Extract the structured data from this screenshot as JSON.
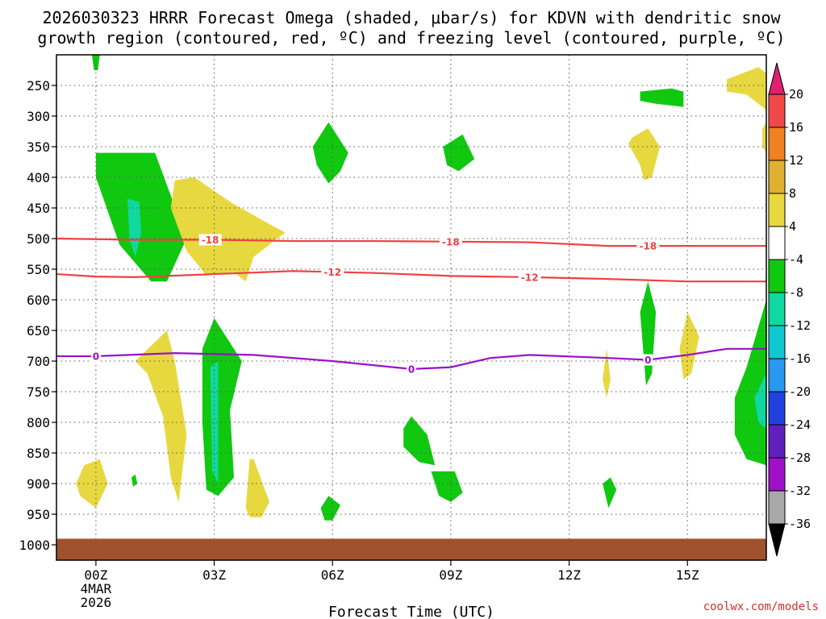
{
  "chart_data": {
    "type": "time-height contour",
    "title_line1": "2026030323 HRRR Forecast Omega (shaded, μbar/s) for KDVN with dendritic snow",
    "title_line2": "growth region (contoured, red, ºC) and freezing level (contoured, purple, ºC)",
    "xlabel": "Forecast Time (UTC)",
    "x_ticks": [
      {
        "label": "00Z",
        "hour": 0
      },
      {
        "label": "03Z",
        "hour": 3
      },
      {
        "label": "06Z",
        "hour": 6
      },
      {
        "label": "09Z",
        "hour": 9
      },
      {
        "label": "12Z",
        "hour": 12
      },
      {
        "label": "15Z",
        "hour": 15
      }
    ],
    "x_sub_label": [
      "4MAR",
      "2026"
    ],
    "xlim_hours": [
      -1,
      17
    ],
    "y_ticks": [
      250,
      300,
      350,
      400,
      450,
      500,
      550,
      600,
      650,
      700,
      750,
      800,
      850,
      900,
      950,
      1000
    ],
    "ylim_hpa": [
      200,
      1025
    ],
    "ground_pressure": 990,
    "ground_color": "#a0522d",
    "colorbar": {
      "labels": [
        "20",
        "16",
        "12",
        "8",
        "4",
        "-4",
        "-8",
        "-12",
        "-16",
        "-20",
        "-24",
        "-28",
        "-32",
        "-36"
      ],
      "colors": [
        "#e02070",
        "#f04848",
        "#f08020",
        "#e0b030",
        "#e8d840",
        "#ffffff",
        "#10c810",
        "#10d8a0",
        "#10c8d0",
        "#2898f0",
        "#2040e0",
        "#6020c0",
        "#a010c8",
        "#a8a8a8",
        "#000000"
      ]
    },
    "shading": [
      {
        "name": "omega-green-2",
        "color": "#10c810",
        "value_range": "-8 to -4",
        "points": [
          [
            -0.1,
            200
          ],
          [
            -0.05,
            225
          ],
          [
            0.05,
            225
          ],
          [
            0.1,
            200
          ]
        ]
      },
      {
        "name": "omega-green-2",
        "color": "#10c810",
        "value_range": "-8 to -4",
        "points": [
          [
            0,
            360
          ],
          [
            1.5,
            360
          ],
          [
            2.3,
            500
          ],
          [
            1.8,
            570
          ],
          [
            1.4,
            570
          ],
          [
            0.6,
            510
          ],
          [
            0,
            400
          ]
        ]
      },
      {
        "name": "omega-teal-2",
        "color": "#10d8a0",
        "value_range": "-12 to -8",
        "points": [
          [
            0.8,
            435
          ],
          [
            1.1,
            440
          ],
          [
            1.15,
            490
          ],
          [
            1.0,
            530
          ],
          [
            0.85,
            500
          ]
        ]
      },
      {
        "name": "omega-yellow-2",
        "color": "#e8d840",
        "value_range": "4 to 8",
        "points": [
          [
            2.0,
            405
          ],
          [
            2.5,
            400
          ],
          [
            3.4,
            440
          ],
          [
            4.5,
            480
          ],
          [
            4.8,
            490
          ],
          [
            4.0,
            530
          ],
          [
            3.8,
            570
          ],
          [
            3.5,
            555
          ],
          [
            2.8,
            560
          ],
          [
            2.3,
            520
          ],
          [
            1.9,
            450
          ]
        ]
      },
      {
        "name": "omega-green-3",
        "color": "#10c810",
        "value_range": "-8 to -4",
        "points": [
          [
            5.5,
            350
          ],
          [
            5.9,
            310
          ],
          [
            6.4,
            360
          ],
          [
            6.2,
            390
          ],
          [
            5.9,
            410
          ],
          [
            5.6,
            380
          ]
        ]
      },
      {
        "name": "omega-green-4",
        "color": "#10c810",
        "value_range": "-8 to -4",
        "points": [
          [
            8.8,
            350
          ],
          [
            9.3,
            330
          ],
          [
            9.6,
            370
          ],
          [
            9.2,
            390
          ],
          [
            8.9,
            380
          ]
        ]
      },
      {
        "name": "omega-green-5",
        "color": "#10c810",
        "value_range": "-8 to -4",
        "points": [
          [
            13.8,
            260
          ],
          [
            14.6,
            255
          ],
          [
            14.9,
            260
          ],
          [
            14.9,
            285
          ],
          [
            14.2,
            280
          ],
          [
            13.8,
            275
          ]
        ]
      },
      {
        "name": "omega-yellow-5",
        "color": "#e8d840",
        "value_range": "4 to 8",
        "points": [
          [
            13.6,
            335
          ],
          [
            14.0,
            320
          ],
          [
            14.3,
            350
          ],
          [
            14.1,
            400
          ],
          [
            13.9,
            405
          ],
          [
            13.8,
            380
          ],
          [
            13.5,
            345
          ]
        ]
      },
      {
        "name": "omega-yellow-6",
        "color": "#e8d840",
        "value_range": "4 to 8",
        "points": [
          [
            16.0,
            240
          ],
          [
            16.8,
            220
          ],
          [
            17.0,
            230
          ],
          [
            17.0,
            290
          ],
          [
            16.5,
            265
          ],
          [
            16.0,
            260
          ]
        ]
      },
      {
        "name": "omega-yellow-7",
        "color": "#e8d840",
        "value_range": "4 to 8",
        "points": [
          [
            16.9,
            320
          ],
          [
            17.0,
            310
          ],
          [
            17.0,
            360
          ],
          [
            16.9,
            350
          ]
        ]
      },
      {
        "name": "omega-yellow-8",
        "color": "#e8d840",
        "value_range": "4 to 8",
        "points": [
          [
            1.0,
            700
          ],
          [
            1.8,
            650
          ],
          [
            2.0,
            700
          ],
          [
            2.3,
            820
          ],
          [
            2.1,
            930
          ],
          [
            1.9,
            890
          ],
          [
            1.7,
            790
          ],
          [
            1.3,
            720
          ]
        ]
      },
      {
        "name": "omega-green-6",
        "color": "#10c810",
        "value_range": "-8 to -4",
        "points": [
          [
            2.7,
            680
          ],
          [
            3.0,
            630
          ],
          [
            3.7,
            700
          ],
          [
            3.4,
            780
          ],
          [
            3.5,
            890
          ],
          [
            3.1,
            920
          ],
          [
            2.8,
            910
          ],
          [
            2.7,
            800
          ]
        ]
      },
      {
        "name": "omega-teal-6",
        "color": "#10d8a0",
        "value_range": "-12 to -8",
        "points": [
          [
            2.9,
            710
          ],
          [
            3.1,
            700
          ],
          [
            3.1,
            900
          ],
          [
            2.95,
            880
          ]
        ]
      },
      {
        "name": "omega-yellow-9",
        "color": "#e8d840",
        "value_range": "4 to 8",
        "points": [
          [
            3.8,
            940
          ],
          [
            3.9,
            860
          ],
          [
            4.0,
            860
          ],
          [
            4.4,
            930
          ],
          [
            4.2,
            955
          ],
          [
            3.9,
            955
          ]
        ]
      },
      {
        "name": "omega-yellow-10",
        "color": "#e8d840",
        "value_range": "4 to 8",
        "points": [
          [
            -0.5,
            900
          ],
          [
            -0.3,
            870
          ],
          [
            0.1,
            860
          ],
          [
            0.3,
            900
          ],
          [
            0.0,
            940
          ],
          [
            -0.4,
            920
          ]
        ]
      },
      {
        "name": "omega-green-7",
        "color": "#10c810",
        "value_range": "-8 to -4",
        "points": [
          [
            0.9,
            890
          ],
          [
            1.0,
            885
          ],
          [
            1.05,
            900
          ],
          [
            0.95,
            905
          ]
        ]
      },
      {
        "name": "omega-green-8",
        "color": "#10c810",
        "value_range": "-8 to -4",
        "points": [
          [
            5.7,
            940
          ],
          [
            5.9,
            920
          ],
          [
            6.2,
            935
          ],
          [
            6.0,
            960
          ],
          [
            5.8,
            960
          ]
        ]
      },
      {
        "name": "omega-green-9",
        "color": "#10c810",
        "value_range": "-8 to -4",
        "points": [
          [
            7.8,
            810
          ],
          [
            8.0,
            790
          ],
          [
            8.4,
            820
          ],
          [
            8.6,
            870
          ],
          [
            8.2,
            865
          ],
          [
            7.8,
            840
          ]
        ]
      },
      {
        "name": "omega-green-10",
        "color": "#10c810",
        "value_range": "-8 to -4",
        "points": [
          [
            8.5,
            880
          ],
          [
            9.1,
            880
          ],
          [
            9.3,
            915
          ],
          [
            9.0,
            930
          ],
          [
            8.7,
            920
          ]
        ]
      },
      {
        "name": "omega-yellow-11",
        "color": "#e8d840",
        "value_range": "4 to 8",
        "points": [
          [
            12.85,
            730
          ],
          [
            12.95,
            680
          ],
          [
            13.05,
            730
          ],
          [
            12.95,
            760
          ]
        ]
      },
      {
        "name": "omega-green-11",
        "color": "#10c810",
        "value_range": "-8 to -4",
        "points": [
          [
            12.85,
            900
          ],
          [
            13.05,
            890
          ],
          [
            13.2,
            910
          ],
          [
            13.0,
            940
          ]
        ]
      },
      {
        "name": "omega-green-12",
        "color": "#10c810",
        "value_range": "-8 to -4",
        "points": [
          [
            13.8,
            620
          ],
          [
            14.0,
            570
          ],
          [
            14.2,
            620
          ],
          [
            14.1,
            720
          ],
          [
            13.95,
            740
          ]
        ]
      },
      {
        "name": "omega-yellow-12",
        "color": "#e8d840",
        "value_range": "4 to 8",
        "points": [
          [
            14.8,
            680
          ],
          [
            15.0,
            620
          ],
          [
            15.3,
            660
          ],
          [
            15.1,
            720
          ],
          [
            14.9,
            730
          ]
        ]
      },
      {
        "name": "omega-green-13",
        "color": "#10c810",
        "value_range": "-8 to -4",
        "points": [
          [
            16.2,
            760
          ],
          [
            16.5,
            710
          ],
          [
            17.0,
            600
          ],
          [
            17.0,
            870
          ],
          [
            16.5,
            860
          ],
          [
            16.2,
            820
          ]
        ]
      },
      {
        "name": "omega-teal-13",
        "color": "#10d8a0",
        "value_range": "-12 to -8",
        "points": [
          [
            16.7,
            760
          ],
          [
            17.0,
            720
          ],
          [
            17.0,
            810
          ],
          [
            16.8,
            800
          ]
        ]
      }
    ],
    "contours": [
      {
        "name": "dgz-contour-minus18",
        "label": "-18",
        "color": "#f04040",
        "points": [
          [
            -1,
            500
          ],
          [
            1,
            502
          ],
          [
            3,
            502
          ],
          [
            5,
            504
          ],
          [
            7,
            504
          ],
          [
            9,
            505
          ],
          [
            11,
            506
          ],
          [
            13,
            512
          ],
          [
            14,
            512
          ],
          [
            17,
            512
          ]
        ],
        "label_positions": [
          2.9,
          9.0,
          14.0
        ]
      },
      {
        "name": "dgz-contour-minus12",
        "label": "-12",
        "color": "#f04040",
        "points": [
          [
            -1,
            558
          ],
          [
            0,
            562
          ],
          [
            1,
            563
          ],
          [
            3,
            558
          ],
          [
            5,
            553
          ],
          [
            7,
            556
          ],
          [
            9,
            561
          ],
          [
            11,
            563
          ],
          [
            13,
            566
          ],
          [
            15,
            570
          ],
          [
            17,
            570
          ]
        ],
        "label_positions": [
          6.0,
          11.0
        ]
      },
      {
        "name": "freezing-level-contour",
        "label": "0",
        "color": "#9a10c8",
        "points": [
          [
            -1,
            692
          ],
          [
            0,
            692
          ],
          [
            2,
            687
          ],
          [
            4,
            690
          ],
          [
            6,
            700
          ],
          [
            8,
            713
          ],
          [
            9,
            710
          ],
          [
            10,
            695
          ],
          [
            11,
            690
          ],
          [
            13,
            695
          ],
          [
            14,
            698
          ],
          [
            15,
            690
          ],
          [
            16,
            680
          ],
          [
            17,
            680
          ]
        ],
        "label_positions": [
          0.0,
          8.0,
          14.0
        ]
      }
    ],
    "credit": "coolwx.com/models"
  }
}
